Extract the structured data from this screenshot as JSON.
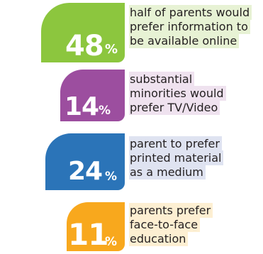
{
  "stats": [
    {
      "value": "48",
      "unit": "%",
      "color": "#8cc63e",
      "lines": [
        "half of parents would",
        "prefer information to",
        "be available online"
      ]
    },
    {
      "value": "14",
      "unit": "%",
      "color": "#9c4e9f",
      "lines": [
        "substantial",
        "minorities would",
        "prefer TV/Video"
      ]
    },
    {
      "value": "24",
      "unit": "%",
      "color": "#2b74b8",
      "lines": [
        "parent to prefer",
        "printed material",
        "as a medium"
      ]
    },
    {
      "value": "11",
      "unit": "%",
      "color": "#f8a81d",
      "lines": [
        "parents prefer",
        "face-to-face",
        "education"
      ]
    }
  ]
}
